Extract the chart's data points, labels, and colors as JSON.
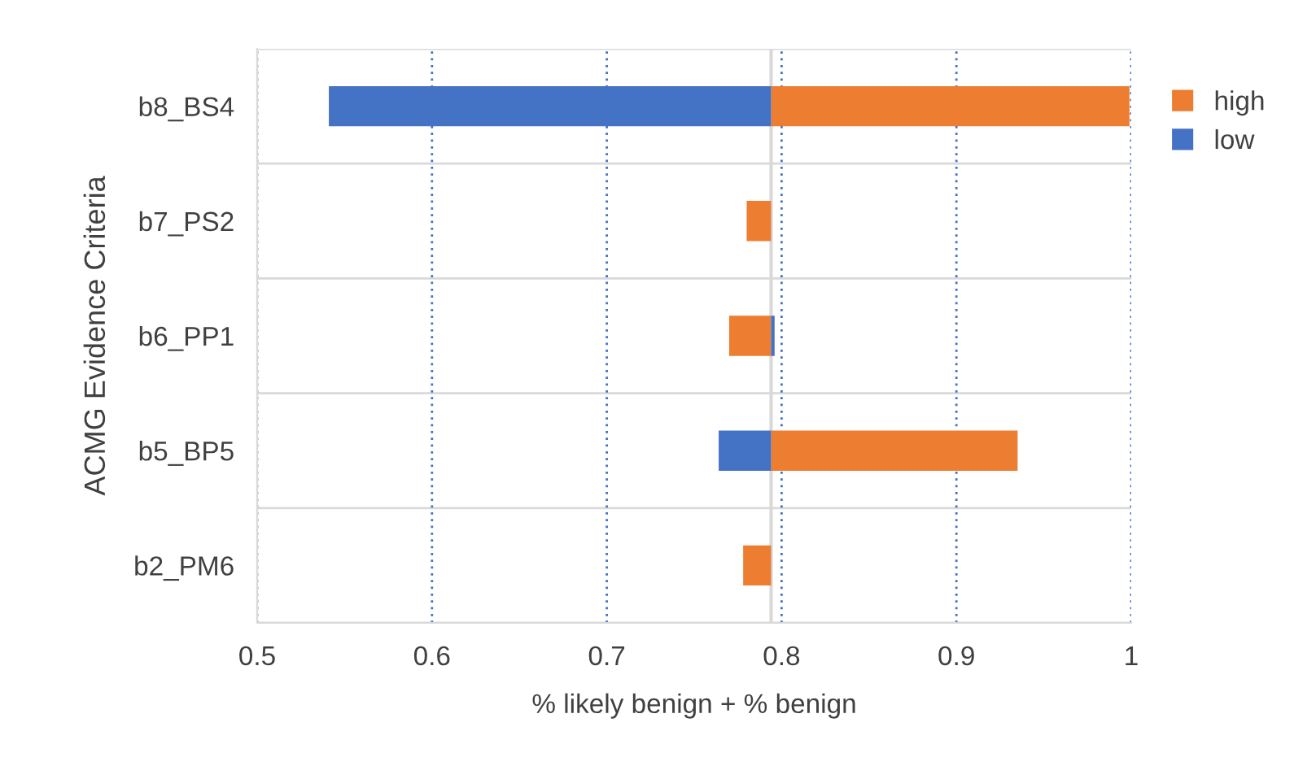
{
  "chart_data": {
    "type": "bar",
    "orientation": "horizontal",
    "categories": [
      "b8_BS4",
      "b7_PS2",
      "b6_PP1",
      "b5_BP5",
      "b2_PM6"
    ],
    "series": [
      {
        "name": "high",
        "color": "#ed7d31",
        "base": [
          0.794,
          0.78,
          0.77,
          0.794,
          0.778
        ],
        "values": [
          0.205,
          0.014,
          0.024,
          0.141,
          0.016
        ]
      },
      {
        "name": "low",
        "color": "#4472c4",
        "base": [
          0.541,
          null,
          0.794,
          0.764,
          null
        ],
        "values": [
          0.253,
          null,
          0.002,
          0.03,
          null
        ]
      }
    ],
    "xlim": [
      0.5,
      1
    ],
    "xticks": [
      0.5,
      0.6,
      0.7,
      0.8,
      0.9,
      {
        "value": 1,
        "label": "1"
      }
    ],
    "xlabel": "% likely benign + % benign",
    "ylabel": "ACMG Evidence Criteria",
    "ref_lines": [
      {
        "axis": "x",
        "value": 0.794,
        "color": "#d9d9d9"
      }
    ],
    "grid": true,
    "legend": "top right"
  }
}
